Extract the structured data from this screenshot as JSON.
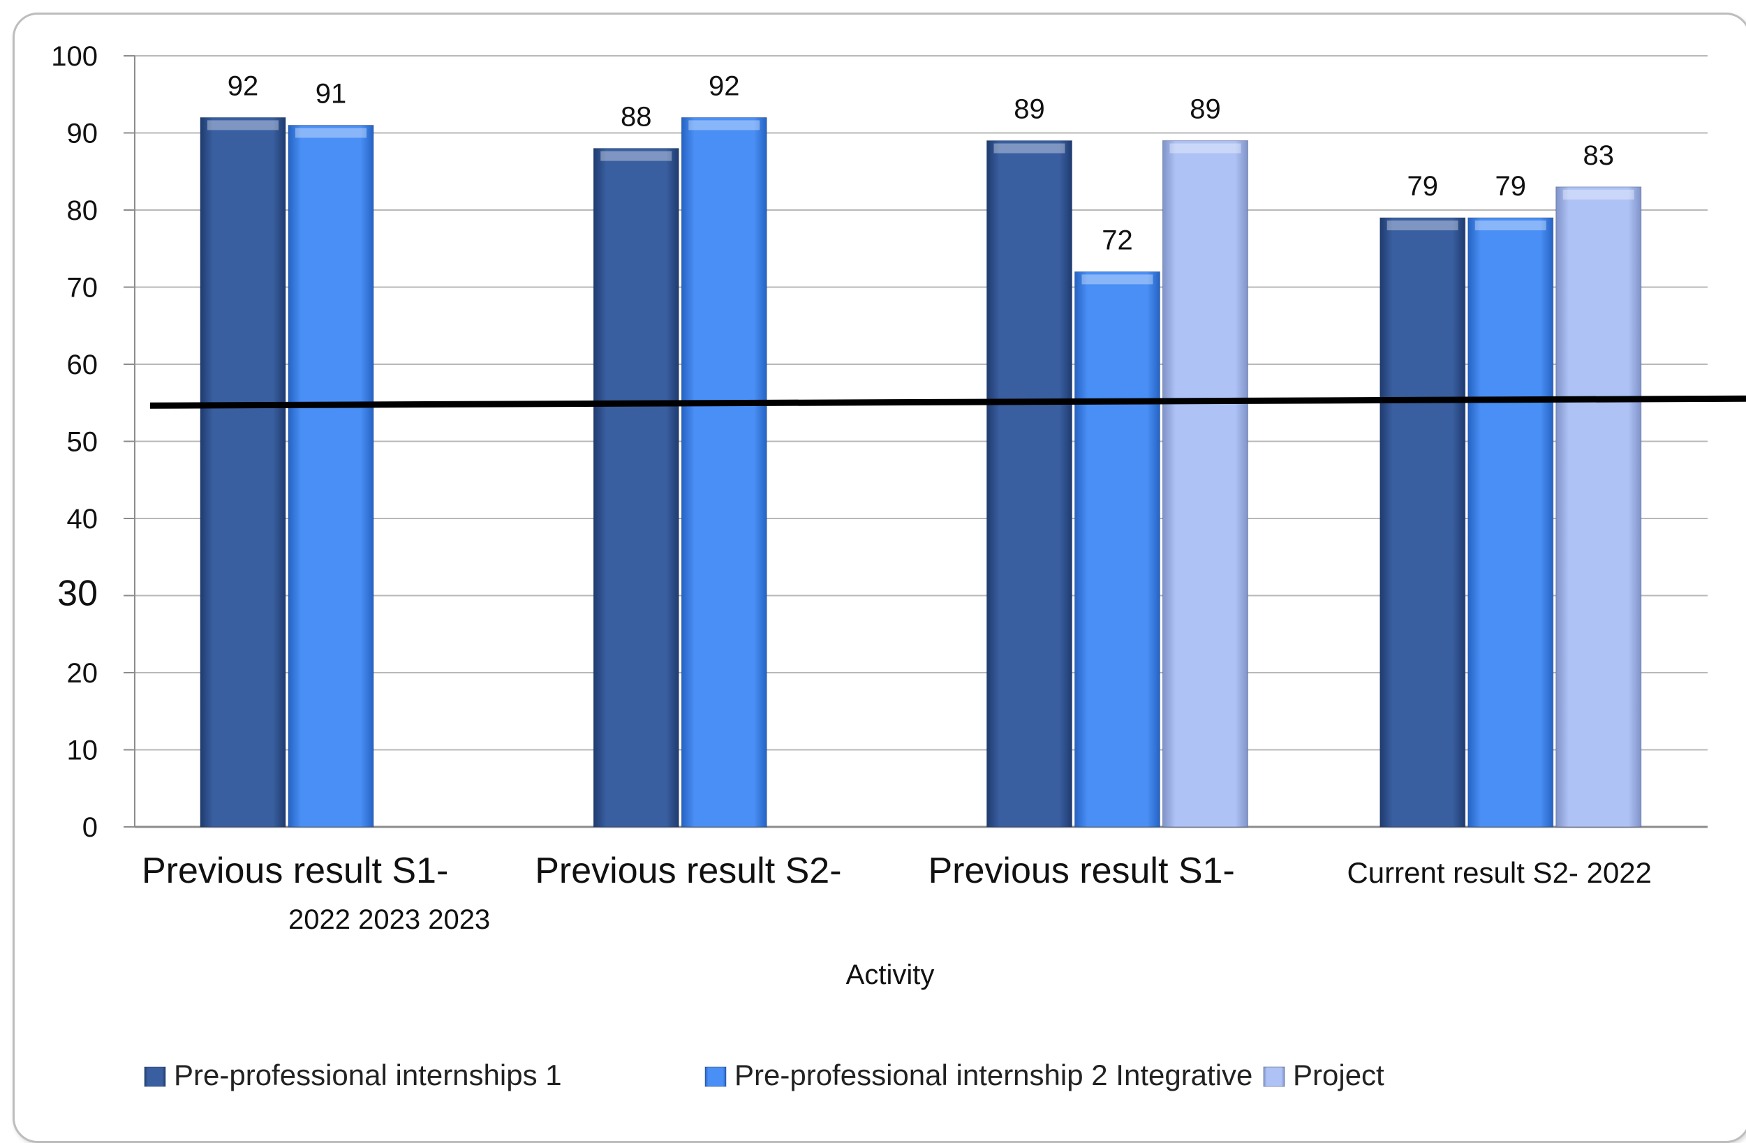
{
  "chart_data": {
    "type": "bar",
    "categories": [
      "Previous result S1-",
      "Previous result S2-",
      "Previous result S1-",
      "Current result S2- 2022"
    ],
    "category_sublabel": "2022 2023 2023",
    "xlabel": "Activity",
    "ylabel": "",
    "ylim": [
      0,
      100
    ],
    "yticks": [
      0,
      10,
      20,
      30,
      40,
      50,
      60,
      70,
      80,
      90,
      100
    ],
    "grid": true,
    "legend_position": "bottom",
    "reference_line": 55,
    "series": [
      {
        "name": "Pre-professional internships 1",
        "values": [
          92,
          88,
          89,
          79
        ],
        "color": "#3a5fa0"
      },
      {
        "name": "Pre-professional internship 2 Integrative",
        "values": [
          91,
          92,
          72,
          79
        ],
        "color": "#4a8ff5"
      },
      {
        "name": "Project",
        "values": [
          null,
          null,
          89,
          83
        ],
        "color": "#aec2f5"
      }
    ]
  }
}
